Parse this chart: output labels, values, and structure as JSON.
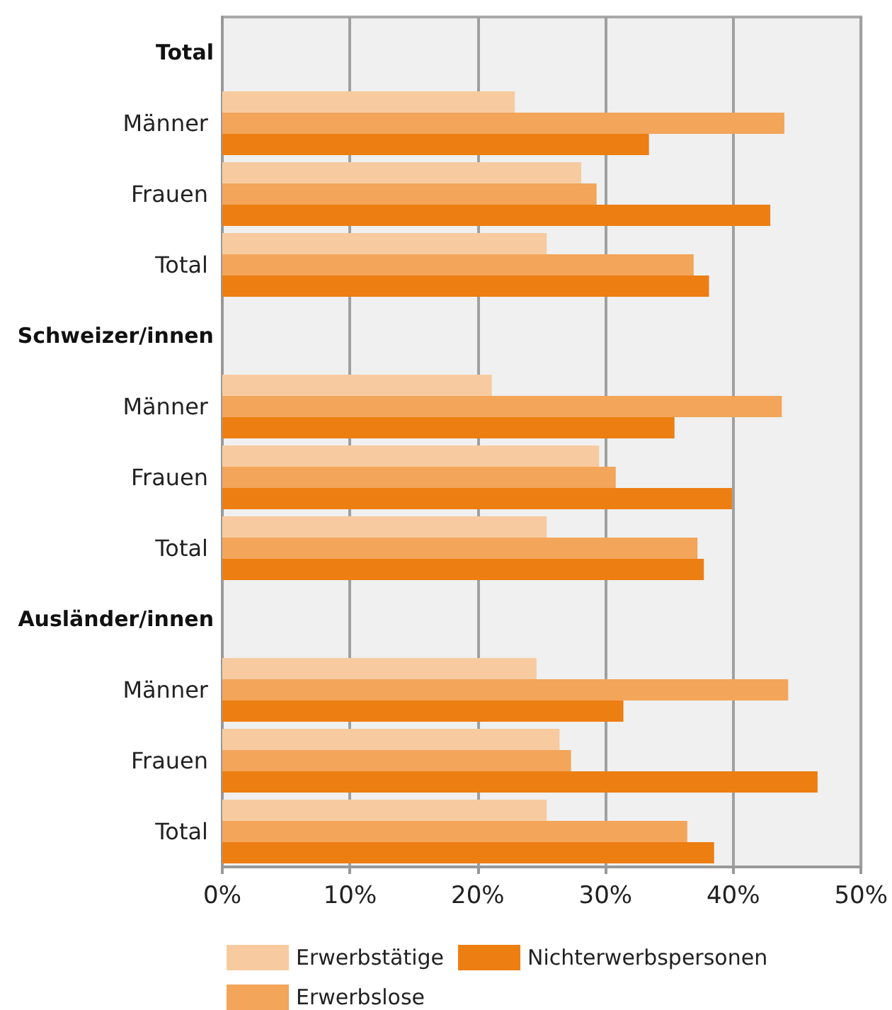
{
  "chart_data": {
    "type": "bar",
    "orientation": "horizontal",
    "categories": [
      "Total",
      "Männer",
      "Frauen",
      "Total",
      "Schweizer/innen",
      "Männer",
      "Frauen",
      "Total",
      "Ausländer/innen",
      "Männer",
      "Frauen",
      "Total"
    ],
    "series": [
      {
        "name": "Erwerbstätige",
        "color": "#f7cb9f",
        "values": [
          null,
          22.9,
          28.1,
          25.4,
          null,
          21.1,
          29.5,
          25.4,
          null,
          24.6,
          26.4,
          25.4
        ]
      },
      {
        "name": "Erwerbslose",
        "color": "#f3a55a",
        "values": [
          null,
          44.0,
          29.3,
          36.9,
          null,
          43.8,
          30.8,
          37.2,
          null,
          44.3,
          27.3,
          36.4
        ]
      },
      {
        "name": "Nichterwerbspersonen",
        "color": "#ed7e12",
        "values": [
          null,
          33.4,
          42.9,
          38.1,
          null,
          35.4,
          39.9,
          37.7,
          null,
          31.4,
          46.6,
          38.5
        ]
      }
    ],
    "xlim": [
      0,
      50
    ],
    "xticks": [
      {
        "value": 0,
        "label": "0%"
      },
      {
        "value": 10,
        "label": "10%"
      },
      {
        "value": 20,
        "label": "20%"
      },
      {
        "value": 30,
        "label": "30%"
      },
      {
        "value": 40,
        "label": "40%"
      },
      {
        "value": 50,
        "label": "50%"
      }
    ],
    "grid": "x",
    "legend": "bottom"
  }
}
